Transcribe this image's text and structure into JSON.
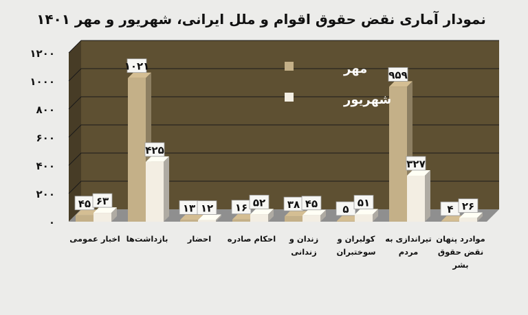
{
  "chart_data": {
    "type": "bar",
    "title": "نمودار آماری نقض حقوق اقوام و ملل ایرانی، شهریور و مهر ۱۴۰۱",
    "categories": [
      [
        "اخبار عمومی"
      ],
      [
        "بازداشت‌ها"
      ],
      [
        "احضار"
      ],
      [
        "احکام صادره"
      ],
      [
        "زندان و",
        "زندانی"
      ],
      [
        "کولبران و",
        "سوختبران"
      ],
      [
        "تیراندازی به",
        "مردم"
      ],
      [
        "موادرد پنهان",
        "نقض حقوق",
        "بشر"
      ]
    ],
    "series": [
      {
        "name": "مهر",
        "color": "#c4b088",
        "values": [
          45,
          1021,
          13,
          16,
          38,
          5,
          959,
          4
        ],
        "labels": [
          "۴۵",
          "۱۰۲۱",
          "۱۳",
          "۱۶",
          "۳۸",
          "۵",
          "۹۵۹",
          "۴"
        ]
      },
      {
        "name": "شهریور",
        "color": "#f3eee3",
        "values": [
          63,
          425,
          12,
          52,
          45,
          51,
          327,
          26
        ],
        "labels": [
          "۶۳",
          "۴۲۵",
          "۱۲",
          "۵۲",
          "۴۵",
          "۵۱",
          "۳۲۷",
          "۲۶"
        ]
      }
    ],
    "ylim": [
      0,
      1200
    ],
    "yticks": [
      0,
      200,
      400,
      600,
      800,
      1000,
      1200
    ],
    "ytick_labels": [
      "۰",
      "۲۰۰",
      "۴۰۰",
      "۶۰۰",
      "۸۰۰",
      "۱۰۰۰",
      "۱۲۰۰"
    ],
    "legend_position": "top-center, inside plot",
    "grid": true,
    "wall_color": "#5e5032",
    "floor_color": "#8f8f8f"
  }
}
